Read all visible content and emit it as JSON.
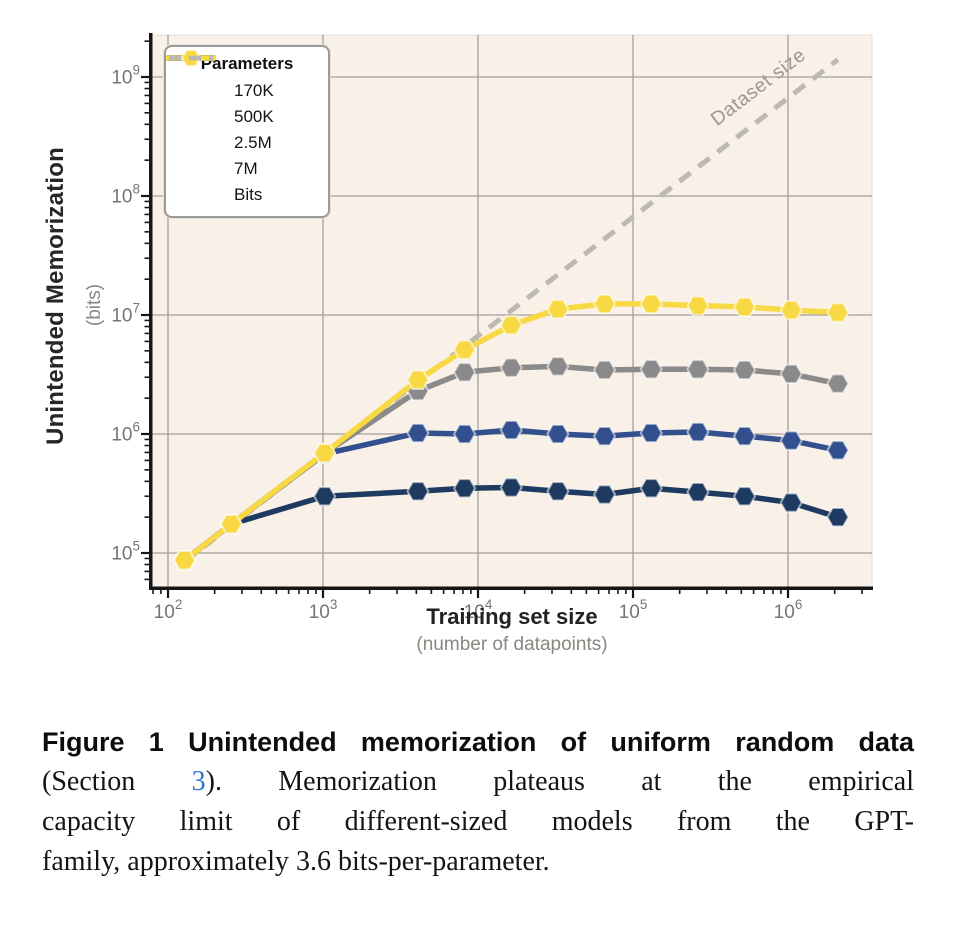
{
  "figure": {
    "y_axis": {
      "title": "Unintended Memorization",
      "unit": "(bits)",
      "tick_base": "10",
      "tick_exponents": [
        5,
        6,
        7,
        8,
        9
      ]
    },
    "x_axis": {
      "title": "Training set size",
      "subtitle": "(number of datapoints)",
      "tick_base": "10",
      "tick_exponents": [
        2,
        3,
        4,
        5,
        6
      ]
    },
    "legend_title": "Parameters",
    "reference_label": "Dataset size"
  },
  "chart_data": {
    "type": "line",
    "x_scale": "log",
    "y_scale": "log",
    "title": "",
    "xlabel": "Training set size",
    "xlabel_sub": "(number of datapoints)",
    "ylabel": "Unintended Memorization",
    "ylabel_sub": "(bits)",
    "xlim": [
      79,
      3500000
    ],
    "ylim": [
      51000,
      2200000000
    ],
    "grid": true,
    "legend_position": "upper left",
    "x": [
      128,
      256,
      1024,
      4096,
      8192,
      16384,
      32768,
      65536,
      131072,
      262144,
      524288,
      1048576,
      2097152
    ],
    "series": [
      {
        "name": "170K",
        "color": "#1e3a61",
        "marker": "hexagon",
        "values": [
          87000,
          175000,
          300000,
          330000,
          350000,
          355000,
          330000,
          310000,
          350000,
          325000,
          300000,
          265000,
          200000
        ]
      },
      {
        "name": "500K",
        "color": "#31508d",
        "marker": "hexagon",
        "values": [
          87000,
          175000,
          680000,
          1020000,
          1000000,
          1080000,
          1000000,
          960000,
          1020000,
          1040000,
          960000,
          880000,
          730000
        ]
      },
      {
        "name": "2.5M",
        "color": "#8a8a8a",
        "marker": "hexagon",
        "values": [
          87000,
          175000,
          690000,
          2300000,
          3300000,
          3600000,
          3700000,
          3450000,
          3500000,
          3500000,
          3450000,
          3200000,
          2650000
        ]
      },
      {
        "name": "7M",
        "color": "#f8d943",
        "marker": "hexagon",
        "values": [
          87000,
          175000,
          690000,
          2850000,
          5100000,
          8200000,
          11200000,
          12400000,
          12400000,
          12000000,
          11700000,
          11000000,
          10500000
        ]
      }
    ],
    "reference_line": {
      "name": "Bits",
      "label": "Dataset size",
      "style": "dashed",
      "color": "#bcb8b2",
      "values": [
        85000,
        170000,
        682000,
        2730000,
        5460000,
        10900000,
        21800000,
        43600000,
        87300000,
        175000000,
        349000000,
        698000000,
        1400000000
      ]
    }
  },
  "colors": {
    "plot_bg": "#f9f0e8",
    "grid": "#a5a19b",
    "axis_ink": "#161616",
    "tick_label": "#757575",
    "reference": "#bcb8b2",
    "reference_text": "#9b968f",
    "link": "#2e76d0"
  },
  "caption": {
    "label": "Figure 1",
    "title": "Unintended memorization of uniform random data",
    "line2_pre": "(Section ",
    "section_link": "3",
    "line2_post": ").  Memorization plateaus at the empirical",
    "line3": "capacity limit of different-sized models from the GPT-",
    "line4": "family, approximately 3.6 bits-per-parameter."
  }
}
